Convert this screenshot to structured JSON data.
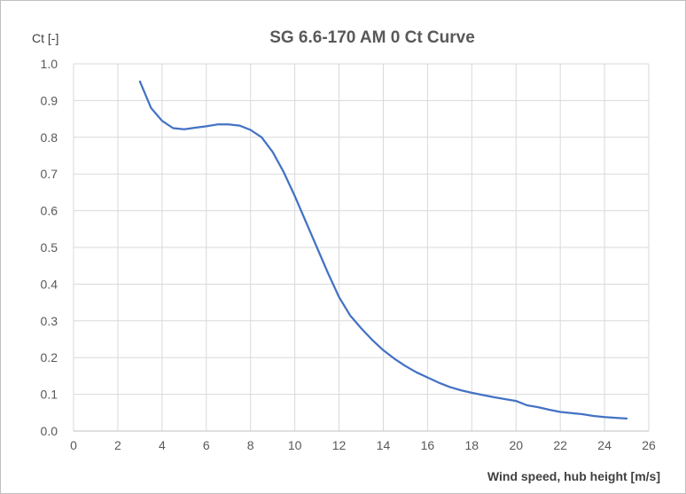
{
  "chart_data": {
    "type": "line",
    "title": "SG 6.6-170 AM 0 Ct Curve",
    "ylabel": "Ct [-]",
    "xlabel": "Wind speed, hub height [m/s]",
    "xlim": [
      0,
      26
    ],
    "ylim": [
      0,
      1.0
    ],
    "x_ticks": [
      "0",
      "2",
      "4",
      "6",
      "8",
      "10",
      "12",
      "14",
      "16",
      "18",
      "20",
      "22",
      "24",
      "26"
    ],
    "y_ticks": [
      "0.0",
      "0.1",
      "0.2",
      "0.3",
      "0.4",
      "0.5",
      "0.6",
      "0.7",
      "0.8",
      "0.9",
      "1.0"
    ],
    "grid": true,
    "series": [
      {
        "color": "#4472c4",
        "x": [
          3,
          3.5,
          4,
          4.5,
          5,
          5.5,
          6,
          6.5,
          7,
          7.5,
          8,
          8.5,
          9,
          9.5,
          10,
          10.5,
          11,
          11.5,
          12,
          12.5,
          13,
          13.5,
          14,
          14.5,
          15,
          15.5,
          16,
          16.5,
          17,
          17.5,
          18,
          18.5,
          19,
          19.5,
          20,
          20.5,
          21,
          21.5,
          22,
          22.5,
          23,
          23.5,
          24,
          24.5,
          25
        ],
        "y": [
          0.952,
          0.88,
          0.845,
          0.825,
          0.822,
          0.826,
          0.83,
          0.835,
          0.835,
          0.832,
          0.82,
          0.8,
          0.76,
          0.705,
          0.64,
          0.57,
          0.5,
          0.43,
          0.365,
          0.315,
          0.28,
          0.248,
          0.22,
          0.197,
          0.177,
          0.16,
          0.146,
          0.132,
          0.12,
          0.111,
          0.104,
          0.098,
          0.092,
          0.087,
          0.082,
          0.07,
          0.065,
          0.058,
          0.052,
          0.049,
          0.046,
          0.041,
          0.038,
          0.036,
          0.034
        ]
      }
    ]
  }
}
